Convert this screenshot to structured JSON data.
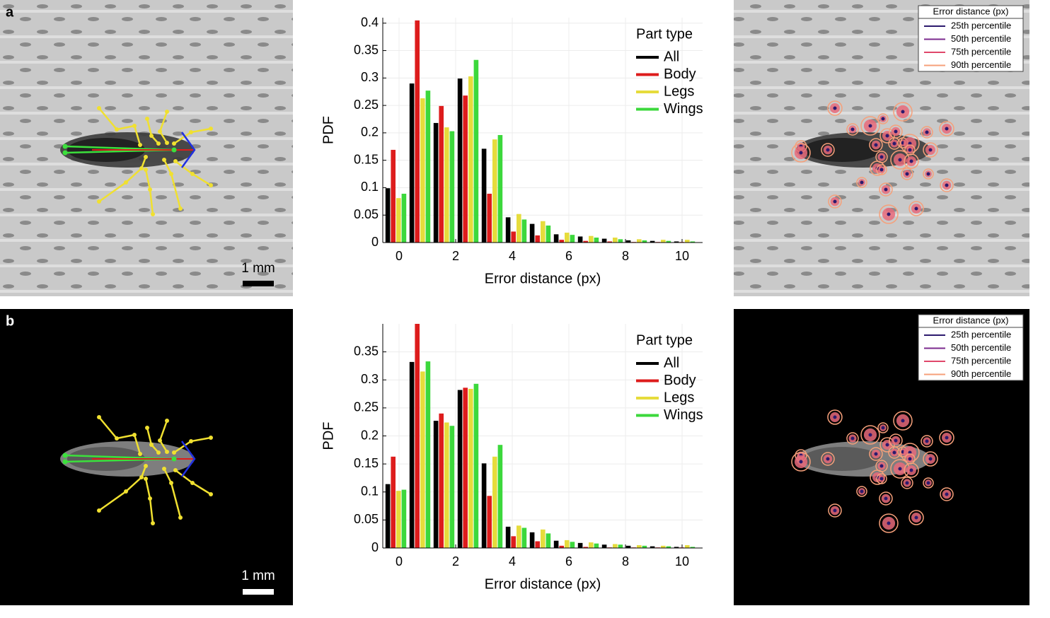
{
  "panels": [
    {
      "label": "a",
      "scale_bar": "1 mm",
      "overlay_legend": {
        "title": "Error distance (px)",
        "entries": [
          {
            "name": "25th percentile",
            "color": "#2c1a6e"
          },
          {
            "name": "50th percentile",
            "color": "#7b2a8e"
          },
          {
            "name": "75th percentile",
            "color": "#e0476a"
          },
          {
            "name": "90th percentile",
            "color": "#f6a07a"
          }
        ]
      }
    },
    {
      "label": "b",
      "scale_bar": "1 mm",
      "overlay_legend": {
        "title": "Error distance (px)",
        "entries": [
          {
            "name": "25th percentile",
            "color": "#2c1a6e"
          },
          {
            "name": "50th percentile",
            "color": "#7b2a8e"
          },
          {
            "name": "75th percentile",
            "color": "#e0476a"
          },
          {
            "name": "90th percentile",
            "color": "#f6a07a"
          }
        ]
      }
    }
  ],
  "chart_data": [
    {
      "type": "bar",
      "xlabel": "Error distance (px)",
      "ylabel": "PDF",
      "legend_title": "Part type",
      "legend": "upper right",
      "grid": true,
      "x": [
        -0.1,
        0.75,
        1.6,
        2.45,
        3.3,
        4.15,
        5.0,
        5.85,
        6.7,
        7.55,
        8.4,
        9.25,
        10.1
      ],
      "series": [
        {
          "name": "All",
          "color": "#000000",
          "values": [
            0.099,
            0.29,
            0.218,
            0.299,
            0.171,
            0.046,
            0.034,
            0.015,
            0.011,
            0.007,
            0.004,
            0.003,
            0.002
          ]
        },
        {
          "name": "Body",
          "color": "#dd1c1c",
          "values": [
            0.169,
            0.405,
            0.249,
            0.268,
            0.089,
            0.02,
            0.013,
            0.005,
            0.003,
            0.002,
            0.001,
            0.001,
            0.001
          ]
        },
        {
          "name": "Legs",
          "color": "#e6dc3c",
          "values": [
            0.081,
            0.263,
            0.21,
            0.303,
            0.188,
            0.052,
            0.039,
            0.018,
            0.012,
            0.009,
            0.006,
            0.005,
            0.005
          ]
        },
        {
          "name": "Wings",
          "color": "#3cd83c",
          "values": [
            0.089,
            0.277,
            0.203,
            0.333,
            0.196,
            0.042,
            0.031,
            0.014,
            0.009,
            0.006,
            0.004,
            0.003,
            0.002
          ]
        }
      ],
      "xlim": [
        -0.575,
        10.725
      ],
      "ylim": [
        0,
        0.41
      ],
      "xticks": [
        0,
        2,
        4,
        6,
        8,
        10
      ],
      "yticks": [
        0,
        0.05,
        0.1,
        0.15,
        0.2,
        0.25,
        0.3,
        0.35,
        0.4
      ]
    },
    {
      "type": "bar",
      "xlabel": "Error distance (px)",
      "ylabel": "PDF",
      "legend_title": "Part type",
      "legend": "upper right",
      "grid": true,
      "x": [
        -0.1,
        0.75,
        1.6,
        2.45,
        3.3,
        4.15,
        5.0,
        5.85,
        6.7,
        7.55,
        8.4,
        9.25,
        10.1
      ],
      "series": [
        {
          "name": "All",
          "color": "#000000",
          "values": [
            0.114,
            0.332,
            0.227,
            0.282,
            0.151,
            0.038,
            0.028,
            0.013,
            0.009,
            0.006,
            0.004,
            0.003,
            0.002
          ]
        },
        {
          "name": "Body",
          "color": "#dd1c1c",
          "values": [
            0.163,
            0.4,
            0.24,
            0.286,
            0.093,
            0.021,
            0.012,
            0.004,
            0.002,
            0.001,
            0.001,
            0.001,
            0.001
          ]
        },
        {
          "name": "Legs",
          "color": "#e6dc3c",
          "values": [
            0.102,
            0.315,
            0.224,
            0.284,
            0.163,
            0.04,
            0.033,
            0.014,
            0.01,
            0.007,
            0.005,
            0.004,
            0.005
          ]
        },
        {
          "name": "Wings",
          "color": "#3cd83c",
          "values": [
            0.104,
            0.333,
            0.218,
            0.293,
            0.184,
            0.036,
            0.026,
            0.011,
            0.008,
            0.006,
            0.004,
            0.003,
            0.002
          ]
        }
      ],
      "xlim": [
        -0.575,
        10.725
      ],
      "ylim": [
        0,
        0.4
      ],
      "xticks": [
        0,
        2,
        4,
        6,
        8,
        10
      ],
      "yticks": [
        0,
        0.05,
        0.1,
        0.15,
        0.2,
        0.25,
        0.3,
        0.35
      ]
    }
  ]
}
